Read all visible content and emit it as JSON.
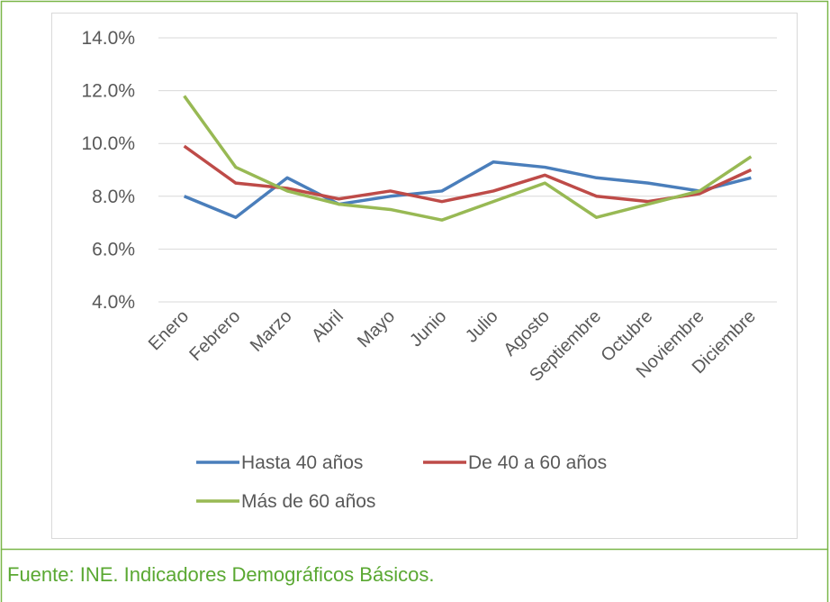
{
  "chart_data": {
    "type": "line",
    "categories": [
      "Enero",
      "Febrero",
      "Marzo",
      "Abril",
      "Mayo",
      "Junio",
      "Julio",
      "Agosto",
      "Septiembre",
      "Octubre",
      "Noviembre",
      "Diciembre"
    ],
    "series": [
      {
        "name": "Hasta 40 años",
        "color": "#4a7ebb",
        "values": [
          8.0,
          7.2,
          8.7,
          7.7,
          8.0,
          8.2,
          9.3,
          9.1,
          8.7,
          8.5,
          8.2,
          8.7
        ]
      },
      {
        "name": "De 40 a 60 años",
        "color": "#be4b48",
        "values": [
          9.9,
          8.5,
          8.3,
          7.9,
          8.2,
          7.8,
          8.2,
          8.8,
          8.0,
          7.8,
          8.1,
          9.0
        ]
      },
      {
        "name": "Más de 60 años",
        "color": "#98b954",
        "values": [
          11.8,
          9.1,
          8.2,
          7.7,
          7.5,
          7.1,
          7.8,
          8.5,
          7.2,
          7.7,
          8.2,
          9.5
        ]
      }
    ],
    "ylim": [
      4,
      14
    ],
    "yticks": [
      {
        "value": 4,
        "label": "4.0%"
      },
      {
        "value": 6,
        "label": "6.0%"
      },
      {
        "value": 8,
        "label": "8.0%"
      },
      {
        "value": 10,
        "label": "10.0%"
      },
      {
        "value": 12,
        "label": "12.0%"
      },
      {
        "value": 14,
        "label": "14.0%"
      }
    ],
    "grid": true,
    "source": "Fuente: INE. Indicadores Demográficos Básicos."
  }
}
